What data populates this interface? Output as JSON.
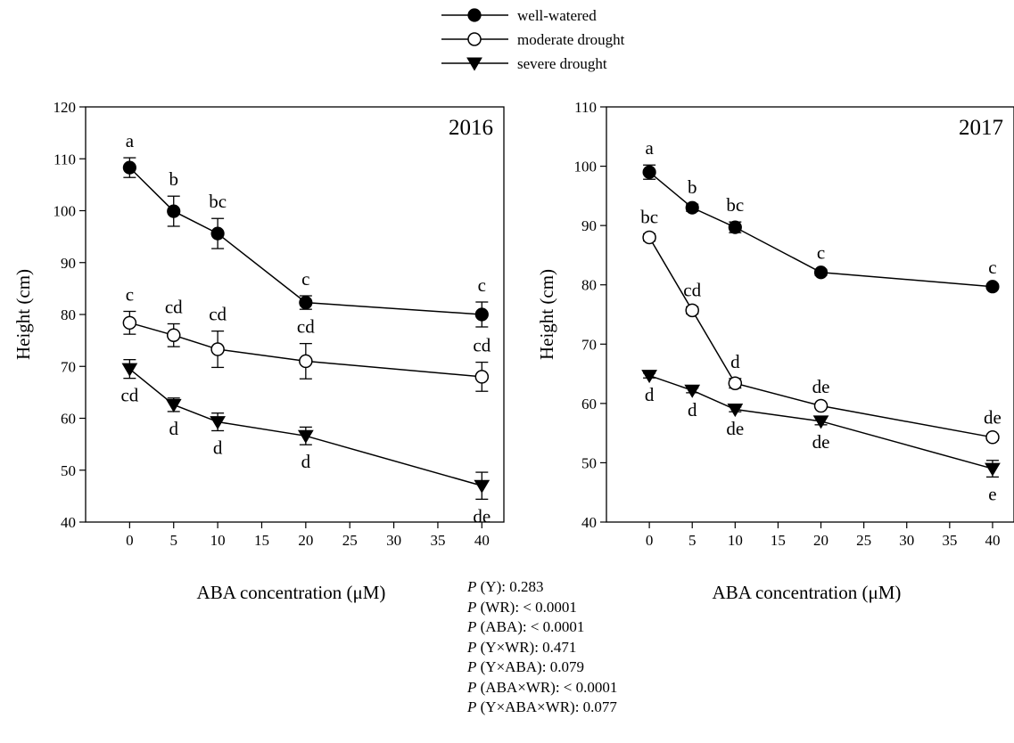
{
  "legend": {
    "entries": [
      {
        "label": "well-watered",
        "marker": "filled-circle"
      },
      {
        "label": "moderate drought",
        "marker": "open-circle"
      },
      {
        "label": "severe drought",
        "marker": "filled-triangle-down"
      }
    ]
  },
  "chart_data": [
    {
      "type": "line",
      "panel_label": "2016",
      "xlabel": "ABA concentration (μM)",
      "ylabel": "Height (cm)",
      "x": [
        0,
        5,
        10,
        20,
        40
      ],
      "xticks": [
        0,
        5,
        10,
        15,
        20,
        25,
        30,
        35,
        40
      ],
      "xlim": [
        -5,
        42.5
      ],
      "ylim": [
        40,
        120
      ],
      "yticks": [
        40,
        50,
        60,
        70,
        80,
        90,
        100,
        110,
        120
      ],
      "series": [
        {
          "name": "well-watered",
          "marker": "filled-circle",
          "values": [
            108.3,
            99.9,
            95.6,
            82.3,
            80.0
          ],
          "errors": [
            1.9,
            2.9,
            2.9,
            1.3,
            2.4
          ],
          "letters": [
            "a",
            "b",
            "bc",
            "c",
            "c"
          ],
          "letter_pos": [
            "above",
            "above",
            "above",
            "above",
            "above"
          ]
        },
        {
          "name": "moderate drought",
          "marker": "open-circle",
          "values": [
            78.4,
            76.0,
            73.3,
            71.0,
            68.0
          ],
          "errors": [
            2.2,
            2.2,
            3.5,
            3.4,
            2.8
          ],
          "letters": [
            "c",
            "cd",
            "cd",
            "cd",
            "cd"
          ],
          "letter_pos": [
            "above",
            "above",
            "above",
            "above",
            "above"
          ]
        },
        {
          "name": "severe drought",
          "marker": "filled-triangle-down",
          "values": [
            69.5,
            62.6,
            59.3,
            56.6,
            47.0
          ],
          "errors": [
            1.8,
            1.3,
            1.7,
            1.7,
            2.6
          ],
          "letters": [
            "cd",
            "d",
            "d",
            "d",
            "de"
          ],
          "letter_pos": [
            "below",
            "below",
            "below",
            "below",
            "below"
          ]
        }
      ]
    },
    {
      "type": "line",
      "panel_label": "2017",
      "xlabel": "ABA concentration (μM)",
      "ylabel": "Height (cm)",
      "x": [
        0,
        5,
        10,
        20,
        40
      ],
      "xticks": [
        0,
        5,
        10,
        15,
        20,
        25,
        30,
        35,
        40
      ],
      "xlim": [
        -5,
        42.5
      ],
      "ylim": [
        40,
        110
      ],
      "yticks": [
        40,
        50,
        60,
        70,
        80,
        90,
        100,
        110
      ],
      "series": [
        {
          "name": "well-watered",
          "marker": "filled-circle",
          "values": [
            99.0,
            93.0,
            89.7,
            82.1,
            79.7
          ],
          "errors": [
            1.2,
            0.6,
            0.9,
            0.5,
            0.4
          ],
          "letters": [
            "a",
            "b",
            "bc",
            "c",
            "c"
          ],
          "letter_pos": [
            "above",
            "above",
            "above",
            "above",
            "above"
          ]
        },
        {
          "name": "moderate drought",
          "marker": "open-circle",
          "values": [
            88.0,
            75.7,
            63.4,
            59.6,
            54.3
          ],
          "errors": [
            0.6,
            0.6,
            0.8,
            0.4,
            0.5
          ],
          "letters": [
            "bc",
            "cd",
            "d",
            "de",
            "de"
          ],
          "letter_pos": [
            "above",
            "above",
            "above",
            "above",
            "above"
          ]
        },
        {
          "name": "severe drought",
          "marker": "filled-triangle-down",
          "values": [
            64.7,
            62.2,
            59.0,
            57.0,
            49.0
          ],
          "errors": [
            0.4,
            0.4,
            0.4,
            0.6,
            1.4
          ],
          "letters": [
            "d",
            "d",
            "de",
            "de",
            "e"
          ],
          "letter_pos": [
            "below",
            "below",
            "below",
            "below",
            "below"
          ]
        }
      ]
    }
  ],
  "stats": [
    {
      "p": "P",
      "text": " (Y): 0.283"
    },
    {
      "p": "P",
      "text": " (WR): < 0.0001"
    },
    {
      "p": "P",
      "text": " (ABA): < 0.0001"
    },
    {
      "p": "P",
      "text": " (Y×WR): 0.471"
    },
    {
      "p": "P",
      "text": " (Y×ABA): 0.079"
    },
    {
      "p": "P",
      "text": " (ABA×WR): < 0.0001"
    },
    {
      "p": "P",
      "text": " (Y×ABA×WR): 0.077"
    }
  ]
}
